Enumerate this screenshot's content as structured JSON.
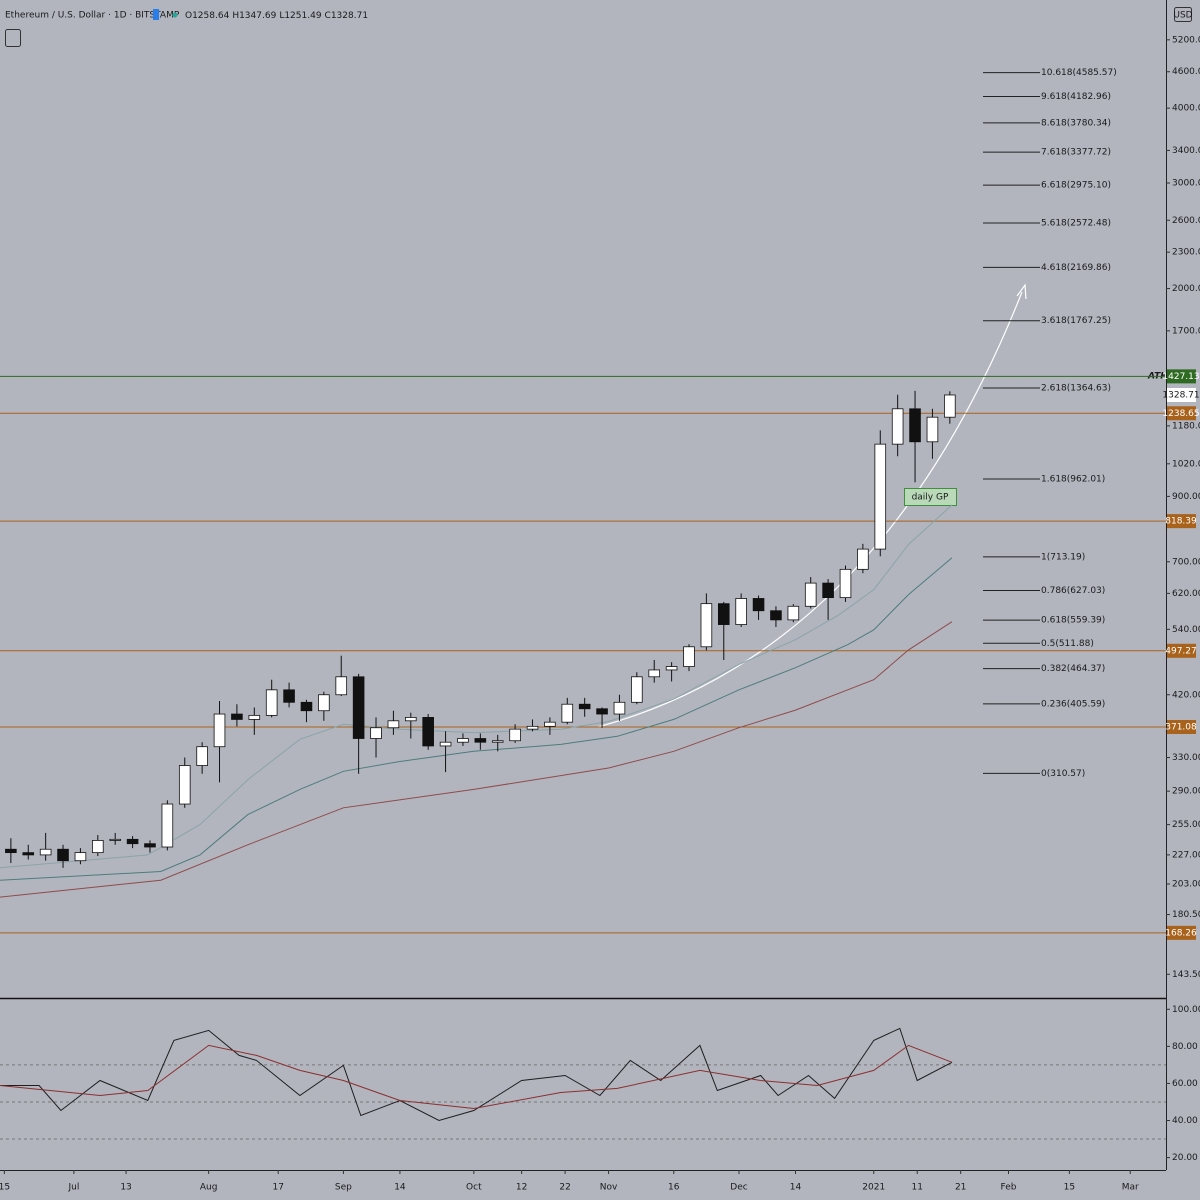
{
  "chart_data": [
    {
      "type": "candlestick",
      "title": "Ethereum / U.S. Dollar · 1D · BITSTAMP",
      "ohlc_legend": [
        "O1258.64",
        "H1347.69",
        "L1251.49",
        "C1328.71"
      ],
      "currency": "USD",
      "log_scale": true,
      "up_color": "#ffffff",
      "down_color": "#111111",
      "x": [
        "2020-06-15",
        "2020-06-19",
        "2020-06-23",
        "2020-06-27",
        "2020-07-01",
        "2020-07-05",
        "2020-07-09",
        "2020-07-13",
        "2020-07-17",
        "2020-07-21",
        "2020-07-25",
        "2020-07-29",
        "2020-08-02",
        "2020-08-06",
        "2020-08-10",
        "2020-08-14",
        "2020-08-18",
        "2020-08-22",
        "2020-08-26",
        "2020-08-30",
        "2020-09-03",
        "2020-09-07",
        "2020-09-11",
        "2020-09-15",
        "2020-09-19",
        "2020-09-23",
        "2020-09-27",
        "2020-10-01",
        "2020-10-05",
        "2020-10-09",
        "2020-10-13",
        "2020-10-17",
        "2020-10-21",
        "2020-10-25",
        "2020-10-29",
        "2020-11-02",
        "2020-11-06",
        "2020-11-10",
        "2020-11-14",
        "2020-11-18",
        "2020-11-22",
        "2020-11-26",
        "2020-11-30",
        "2020-12-04",
        "2020-12-08",
        "2020-12-12",
        "2020-12-16",
        "2020-12-20",
        "2020-12-24",
        "2020-12-28",
        "2021-01-01",
        "2021-01-05",
        "2021-01-09",
        "2021-01-13",
        "2021-01-17"
      ],
      "open": [
        232,
        229,
        227,
        232,
        222,
        229,
        240,
        241,
        237,
        234,
        276,
        320,
        344,
        390,
        382,
        388,
        428,
        408,
        395,
        420,
        450,
        355,
        370,
        380,
        385,
        345,
        350,
        355,
        350,
        352,
        368,
        372,
        378,
        405,
        398,
        390,
        408,
        450,
        462,
        468,
        505,
        596,
        550,
        608,
        580,
        560,
        590,
        645,
        610,
        680,
        735,
        1100,
        1260,
        1110,
        1220
      ],
      "high": [
        242,
        236,
        247,
        236,
        233,
        245,
        247,
        244,
        240,
        280,
        330,
        350,
        410,
        405,
        400,
        445,
        440,
        412,
        425,
        488,
        455,
        385,
        395,
        392,
        390,
        365,
        362,
        362,
        360,
        375,
        382,
        385,
        415,
        415,
        400,
        420,
        458,
        480,
        476,
        510,
        620,
        600,
        620,
        615,
        590,
        595,
        660,
        655,
        690,
        750,
        1160,
        1330,
        1350,
        1260,
        1347.69
      ],
      "low": [
        220,
        223,
        222,
        216,
        219,
        226,
        236,
        233,
        229,
        231,
        272,
        310,
        300,
        372,
        360,
        385,
        400,
        378,
        380,
        418,
        310,
        330,
        360,
        355,
        340,
        312,
        345,
        340,
        338,
        349,
        365,
        360,
        375,
        386,
        370,
        380,
        405,
        440,
        442,
        460,
        498,
        480,
        545,
        560,
        545,
        555,
        585,
        560,
        600,
        670,
        715,
        1050,
        950,
        1040,
        1190
      ],
      "close": [
        229,
        227,
        232,
        222,
        229,
        240,
        241,
        237,
        234,
        276,
        320,
        344,
        390,
        382,
        388,
        428,
        408,
        395,
        420,
        450,
        355,
        370,
        380,
        385,
        345,
        350,
        355,
        350,
        352,
        368,
        372,
        378,
        405,
        398,
        390,
        408,
        450,
        462,
        468,
        505,
        596,
        550,
        608,
        580,
        560,
        590,
        645,
        610,
        680,
        735,
        1100,
        1260,
        1110,
        1220,
        1328.71
      ],
      "series": [
        {
          "color": "#8aa4a8",
          "x": [
            "2020-06-14",
            "2020-07-18",
            "2020-07-30",
            "2020-08-10",
            "2020-08-22",
            "2020-09-01",
            "2020-09-14",
            "2020-10-01",
            "2020-10-21",
            "2020-11-01",
            "2020-11-16",
            "2020-12-01",
            "2020-12-14",
            "2020-12-24",
            "2021-01-01",
            "2021-01-09",
            "2021-01-19"
          ],
          "values": [
            216,
            227,
            255,
            303,
            354,
            375,
            368,
            363,
            368,
            379,
            413,
            472,
            519,
            571,
            629,
            748,
            871
          ]
        },
        {
          "color": "#4e7c7c",
          "x": [
            "2020-06-14",
            "2020-07-21",
            "2020-07-30",
            "2020-08-10",
            "2020-08-22",
            "2020-09-01",
            "2020-09-14",
            "2020-10-01",
            "2020-10-21",
            "2020-11-03",
            "2020-11-16",
            "2020-12-01",
            "2020-12-14",
            "2020-12-26",
            "2021-01-01",
            "2021-01-09",
            "2021-01-19"
          ],
          "values": [
            206,
            213,
            227,
            265,
            292,
            313,
            325,
            338,
            347,
            358,
            382,
            428,
            466,
            509,
            539,
            617,
            711
          ]
        },
        {
          "color": "#8e4b4b",
          "x": [
            "2020-06-14",
            "2020-07-21",
            "2020-08-10",
            "2020-09-01",
            "2020-10-01",
            "2020-11-01",
            "2020-11-16",
            "2020-12-01",
            "2020-12-14",
            "2020-12-26",
            "2021-01-01",
            "2021-01-09",
            "2021-01-19"
          ],
          "values": [
            193,
            206,
            236,
            272,
            292,
            317,
            338,
            370,
            396,
            428,
            445,
            499,
            556
          ]
        }
      ],
      "xlim": [
        "2020-06-14",
        "2021-03-09"
      ],
      "xticks": [
        {
          "value": "2020-06-15",
          "label": "15"
        },
        {
          "value": "2020-07-01",
          "label": "Jul"
        },
        {
          "value": "2020-07-13",
          "label": "13"
        },
        {
          "value": "2020-08-01",
          "label": "Aug"
        },
        {
          "value": "2020-08-17",
          "label": "17"
        },
        {
          "value": "2020-09-01",
          "label": "Sep"
        },
        {
          "value": "2020-09-14",
          "label": "14"
        },
        {
          "value": "2020-10-01",
          "label": "Oct"
        },
        {
          "value": "2020-10-12",
          "label": "12"
        },
        {
          "value": "2020-10-22",
          "label": "22"
        },
        {
          "value": "2020-11-01",
          "label": "Nov"
        },
        {
          "value": "2020-11-16",
          "label": "16"
        },
        {
          "value": "2020-12-01",
          "label": "Dec"
        },
        {
          "value": "2020-12-14",
          "label": "14"
        },
        {
          "value": "2021-01-01",
          "label": "2021"
        },
        {
          "value": "2021-01-11",
          "label": "11"
        },
        {
          "value": "2021-01-21",
          "label": "21"
        },
        {
          "value": "2021-02-01",
          "label": "Feb"
        },
        {
          "value": "2021-02-15",
          "label": "15"
        },
        {
          "value": "2021-03-01",
          "label": "Mar"
        }
      ],
      "ylim": [
        131,
        6060
      ],
      "yticks": [
        {
          "value": 5200,
          "label": "5200.00"
        },
        {
          "value": 4600,
          "label": "4600.00"
        },
        {
          "value": 4000,
          "label": "4000.00"
        },
        {
          "value": 3400,
          "label": "3400.00"
        },
        {
          "value": 3000,
          "label": "3000.00"
        },
        {
          "value": 2600,
          "label": "2600.00"
        },
        {
          "value": 2300,
          "label": "2300.00"
        },
        {
          "value": 2000,
          "label": "2000.00"
        },
        {
          "value": 1700,
          "label": "1700.00"
        },
        {
          "value": 1180,
          "label": "1180.00"
        },
        {
          "value": 1020,
          "label": "1020.00"
        },
        {
          "value": 900,
          "label": "900.00"
        },
        {
          "value": 700,
          "label": "700.00"
        },
        {
          "value": 620,
          "label": "620.00"
        },
        {
          "value": 540,
          "label": "540.00"
        },
        {
          "value": 420,
          "label": "420.00"
        },
        {
          "value": 330,
          "label": "330.00"
        },
        {
          "value": 290,
          "label": "290.00"
        },
        {
          "value": 255,
          "label": "255.00"
        },
        {
          "value": 227,
          "label": "227.00"
        },
        {
          "value": 203,
          "label": "203.00"
        },
        {
          "value": 180.5,
          "label": "180.50"
        },
        {
          "value": 143.5,
          "label": "143.50"
        }
      ],
      "levels": [
        {
          "value": 1427.13,
          "color": "#2f6a22"
        },
        {
          "value": 1238.65,
          "color": "#a9621b"
        },
        {
          "value": 818.39,
          "color": "#a9621b"
        },
        {
          "value": 497.27,
          "color": "#a9621b"
        },
        {
          "value": 371.08,
          "color": "#a9621b"
        },
        {
          "value": 168.26,
          "color": "#a9621b"
        }
      ],
      "last_price": 1328.71,
      "fib_levels": [
        {
          "value": 4585.57,
          "label": "10.618(4585.57)"
        },
        {
          "value": 4182.96,
          "label": "9.618(4182.96)"
        },
        {
          "value": 3780.34,
          "label": "8.618(3780.34)"
        },
        {
          "value": 3377.72,
          "label": "7.618(3377.72)"
        },
        {
          "value": 2975.1,
          "label": "6.618(2975.10)"
        },
        {
          "value": 2572.48,
          "label": "5.618(2572.48)"
        },
        {
          "value": 2169.86,
          "label": "4.618(2169.86)"
        },
        {
          "value": 1767.25,
          "label": "3.618(1767.25)"
        },
        {
          "value": 1364.63,
          "label": "2.618(1364.63)"
        },
        {
          "value": 962.01,
          "label": "1.618(962.01)"
        },
        {
          "value": 713.19,
          "label": "1(713.19)"
        },
        {
          "value": 627.03,
          "label": "0.786(627.03)"
        },
        {
          "value": 559.39,
          "label": "0.618(559.39)"
        },
        {
          "value": 511.88,
          "label": "0.5(511.88)"
        },
        {
          "value": 464.37,
          "label": "0.382(464.37)"
        },
        {
          "value": 405.59,
          "label": "0.236(405.59)"
        },
        {
          "value": 310.57,
          "label": "0(310.57)"
        }
      ],
      "annotations": [
        "ATH",
        "daily GP"
      ]
    },
    {
      "type": "line",
      "series": [
        {
          "color": "#1e1e1e",
          "x": [
            "2020-06-14",
            "2020-06-23",
            "2020-06-28",
            "2020-07-07",
            "2020-07-18",
            "2020-07-24",
            "2020-08-01",
            "2020-08-08",
            "2020-08-12",
            "2020-08-22",
            "2020-09-01",
            "2020-09-05",
            "2020-09-14",
            "2020-09-23",
            "2020-10-01",
            "2020-10-12",
            "2020-10-22",
            "2020-10-30",
            "2020-11-06",
            "2020-11-13",
            "2020-11-22",
            "2020-11-26",
            "2020-12-06",
            "2020-12-10",
            "2020-12-17",
            "2020-12-23",
            "2021-01-01",
            "2021-01-07",
            "2021-01-11",
            "2021-01-19"
          ],
          "values": [
            58.9,
            58.9,
            45.4,
            61.6,
            50.8,
            83.2,
            88.6,
            75.1,
            72.4,
            53.5,
            69.7,
            42.7,
            50.8,
            40,
            45.4,
            61.6,
            64.3,
            53.5,
            72.4,
            61.6,
            80.5,
            56.2,
            64.3,
            53.5,
            64.3,
            51.9,
            83.2,
            89.7,
            61.6,
            71.4
          ]
        },
        {
          "color": "#8b2f2f",
          "x": [
            "2020-06-14",
            "2020-07-07",
            "2020-07-18",
            "2020-08-01",
            "2020-08-12",
            "2020-08-22",
            "2020-09-01",
            "2020-09-14",
            "2020-10-01",
            "2020-10-21",
            "2020-11-03",
            "2020-11-22",
            "2020-12-06",
            "2020-12-19",
            "2021-01-01",
            "2021-01-09",
            "2021-01-19"
          ],
          "values": [
            58.9,
            53.5,
            56.2,
            80.5,
            75.1,
            67.0,
            61.6,
            50.8,
            46.5,
            55.1,
            57.3,
            67.0,
            61.6,
            58.9,
            67.0,
            80.5,
            71.4
          ]
        }
      ],
      "ylim": [
        16,
        105
      ],
      "yticks": [
        {
          "value": 100,
          "label": "100.00"
        },
        {
          "value": 80,
          "label": "80.00"
        },
        {
          "value": 60,
          "label": "60.00"
        },
        {
          "value": 40,
          "label": "40.00"
        },
        {
          "value": 20,
          "label": "20.00"
        }
      ],
      "hlines": [
        70,
        50,
        30
      ]
    }
  ]
}
